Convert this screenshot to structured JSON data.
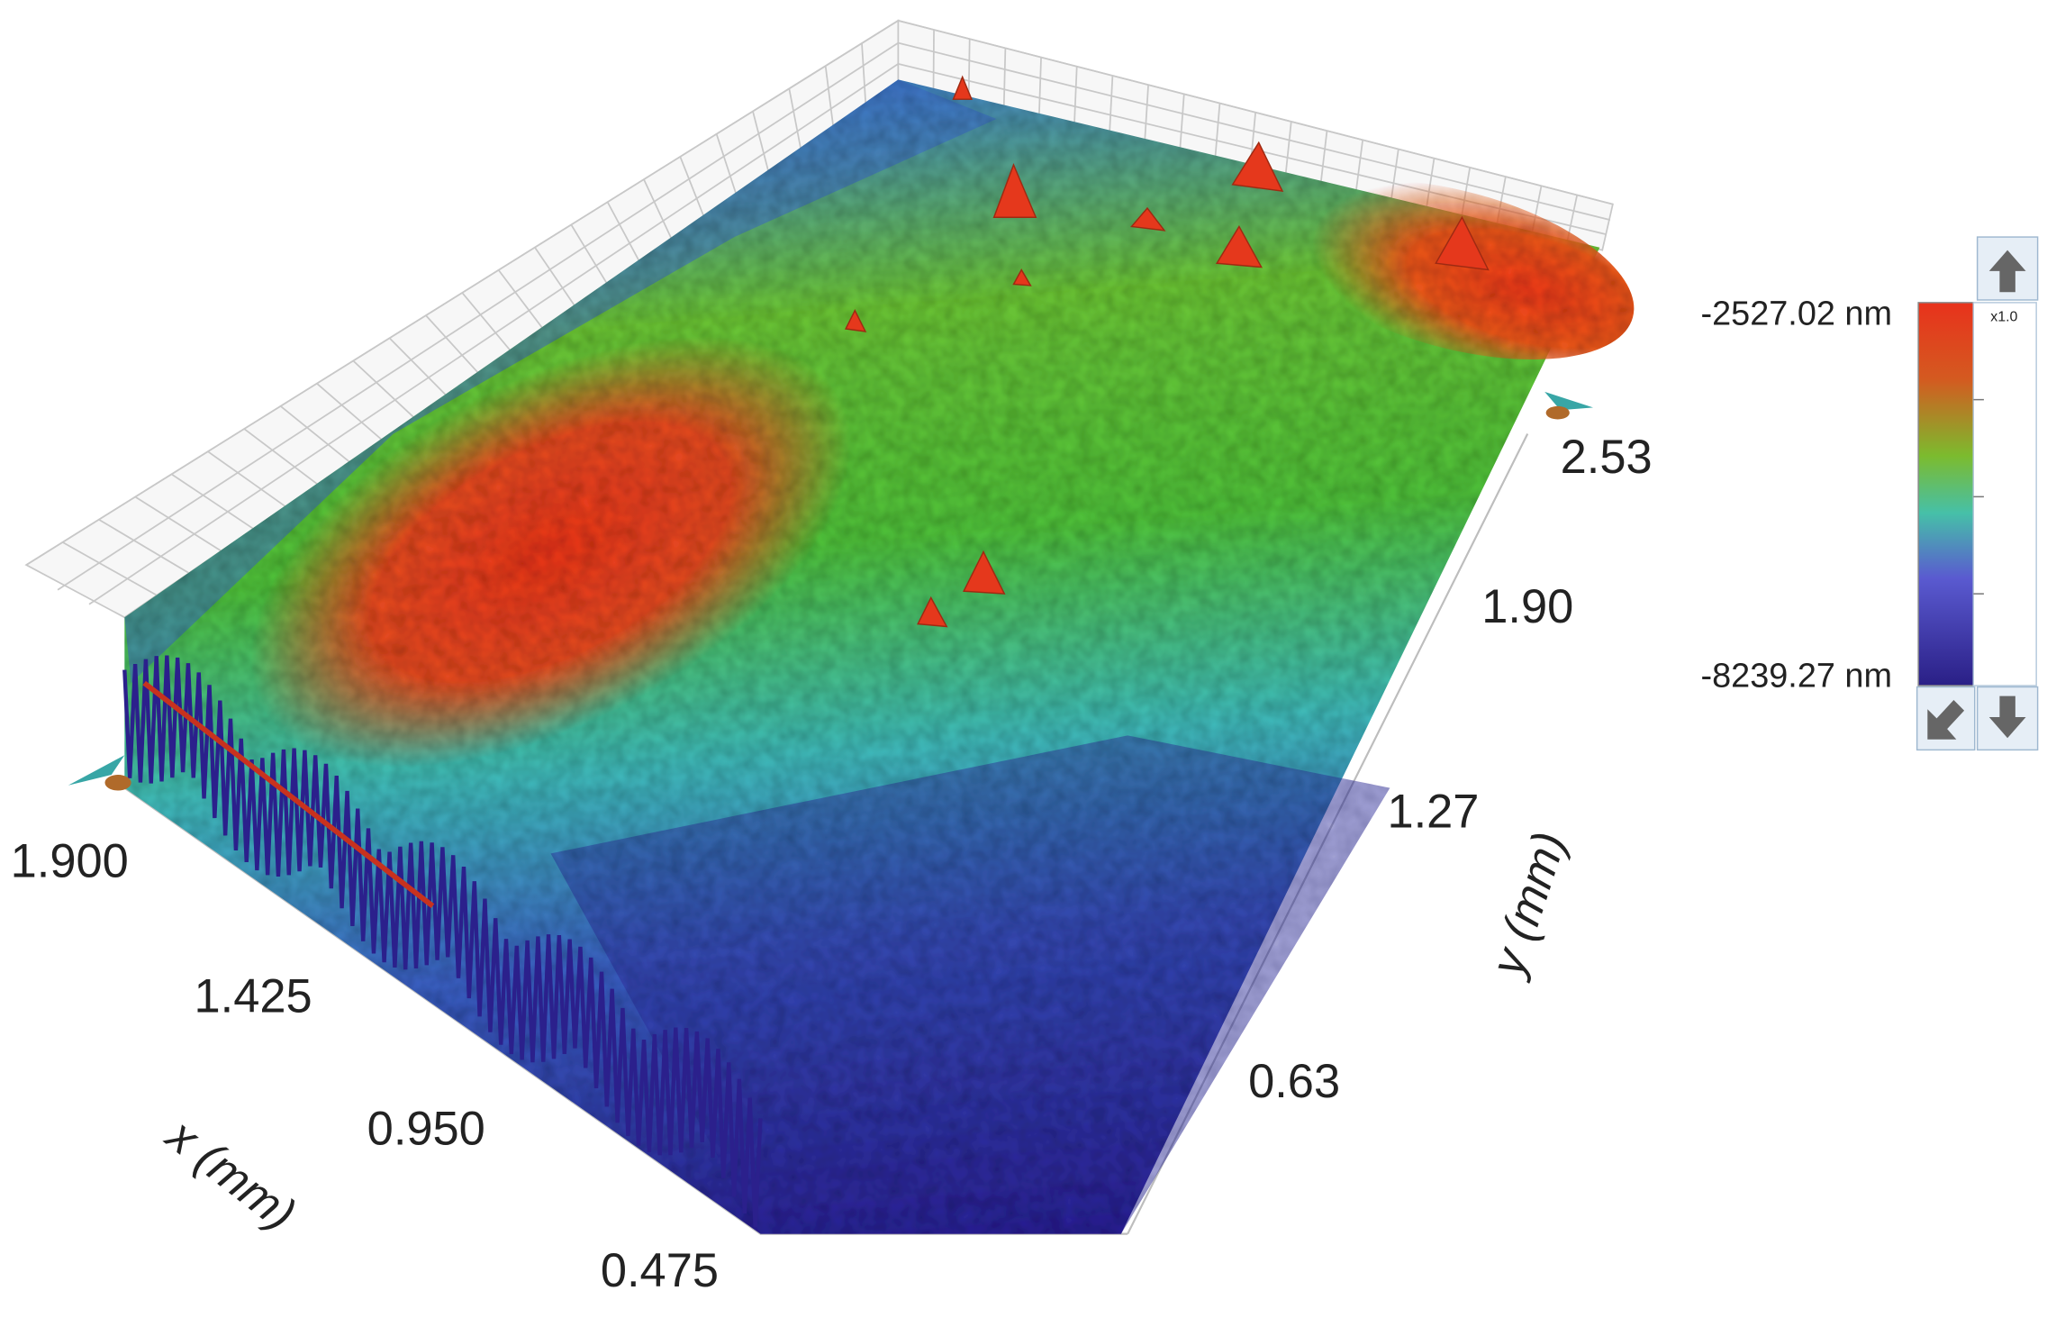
{
  "x_axis": {
    "label": "x (mm)",
    "ticks": [
      "1.900",
      "1.425",
      "0.950",
      "0.475"
    ]
  },
  "y_axis": {
    "label": "y (mm)",
    "ticks": [
      "2.53",
      "1.90",
      "1.27",
      "0.63"
    ]
  },
  "colorbar": {
    "max_label": "-2527.02 nm",
    "min_label": "-8239.27 nm",
    "zoom_label": "x1.0"
  }
}
